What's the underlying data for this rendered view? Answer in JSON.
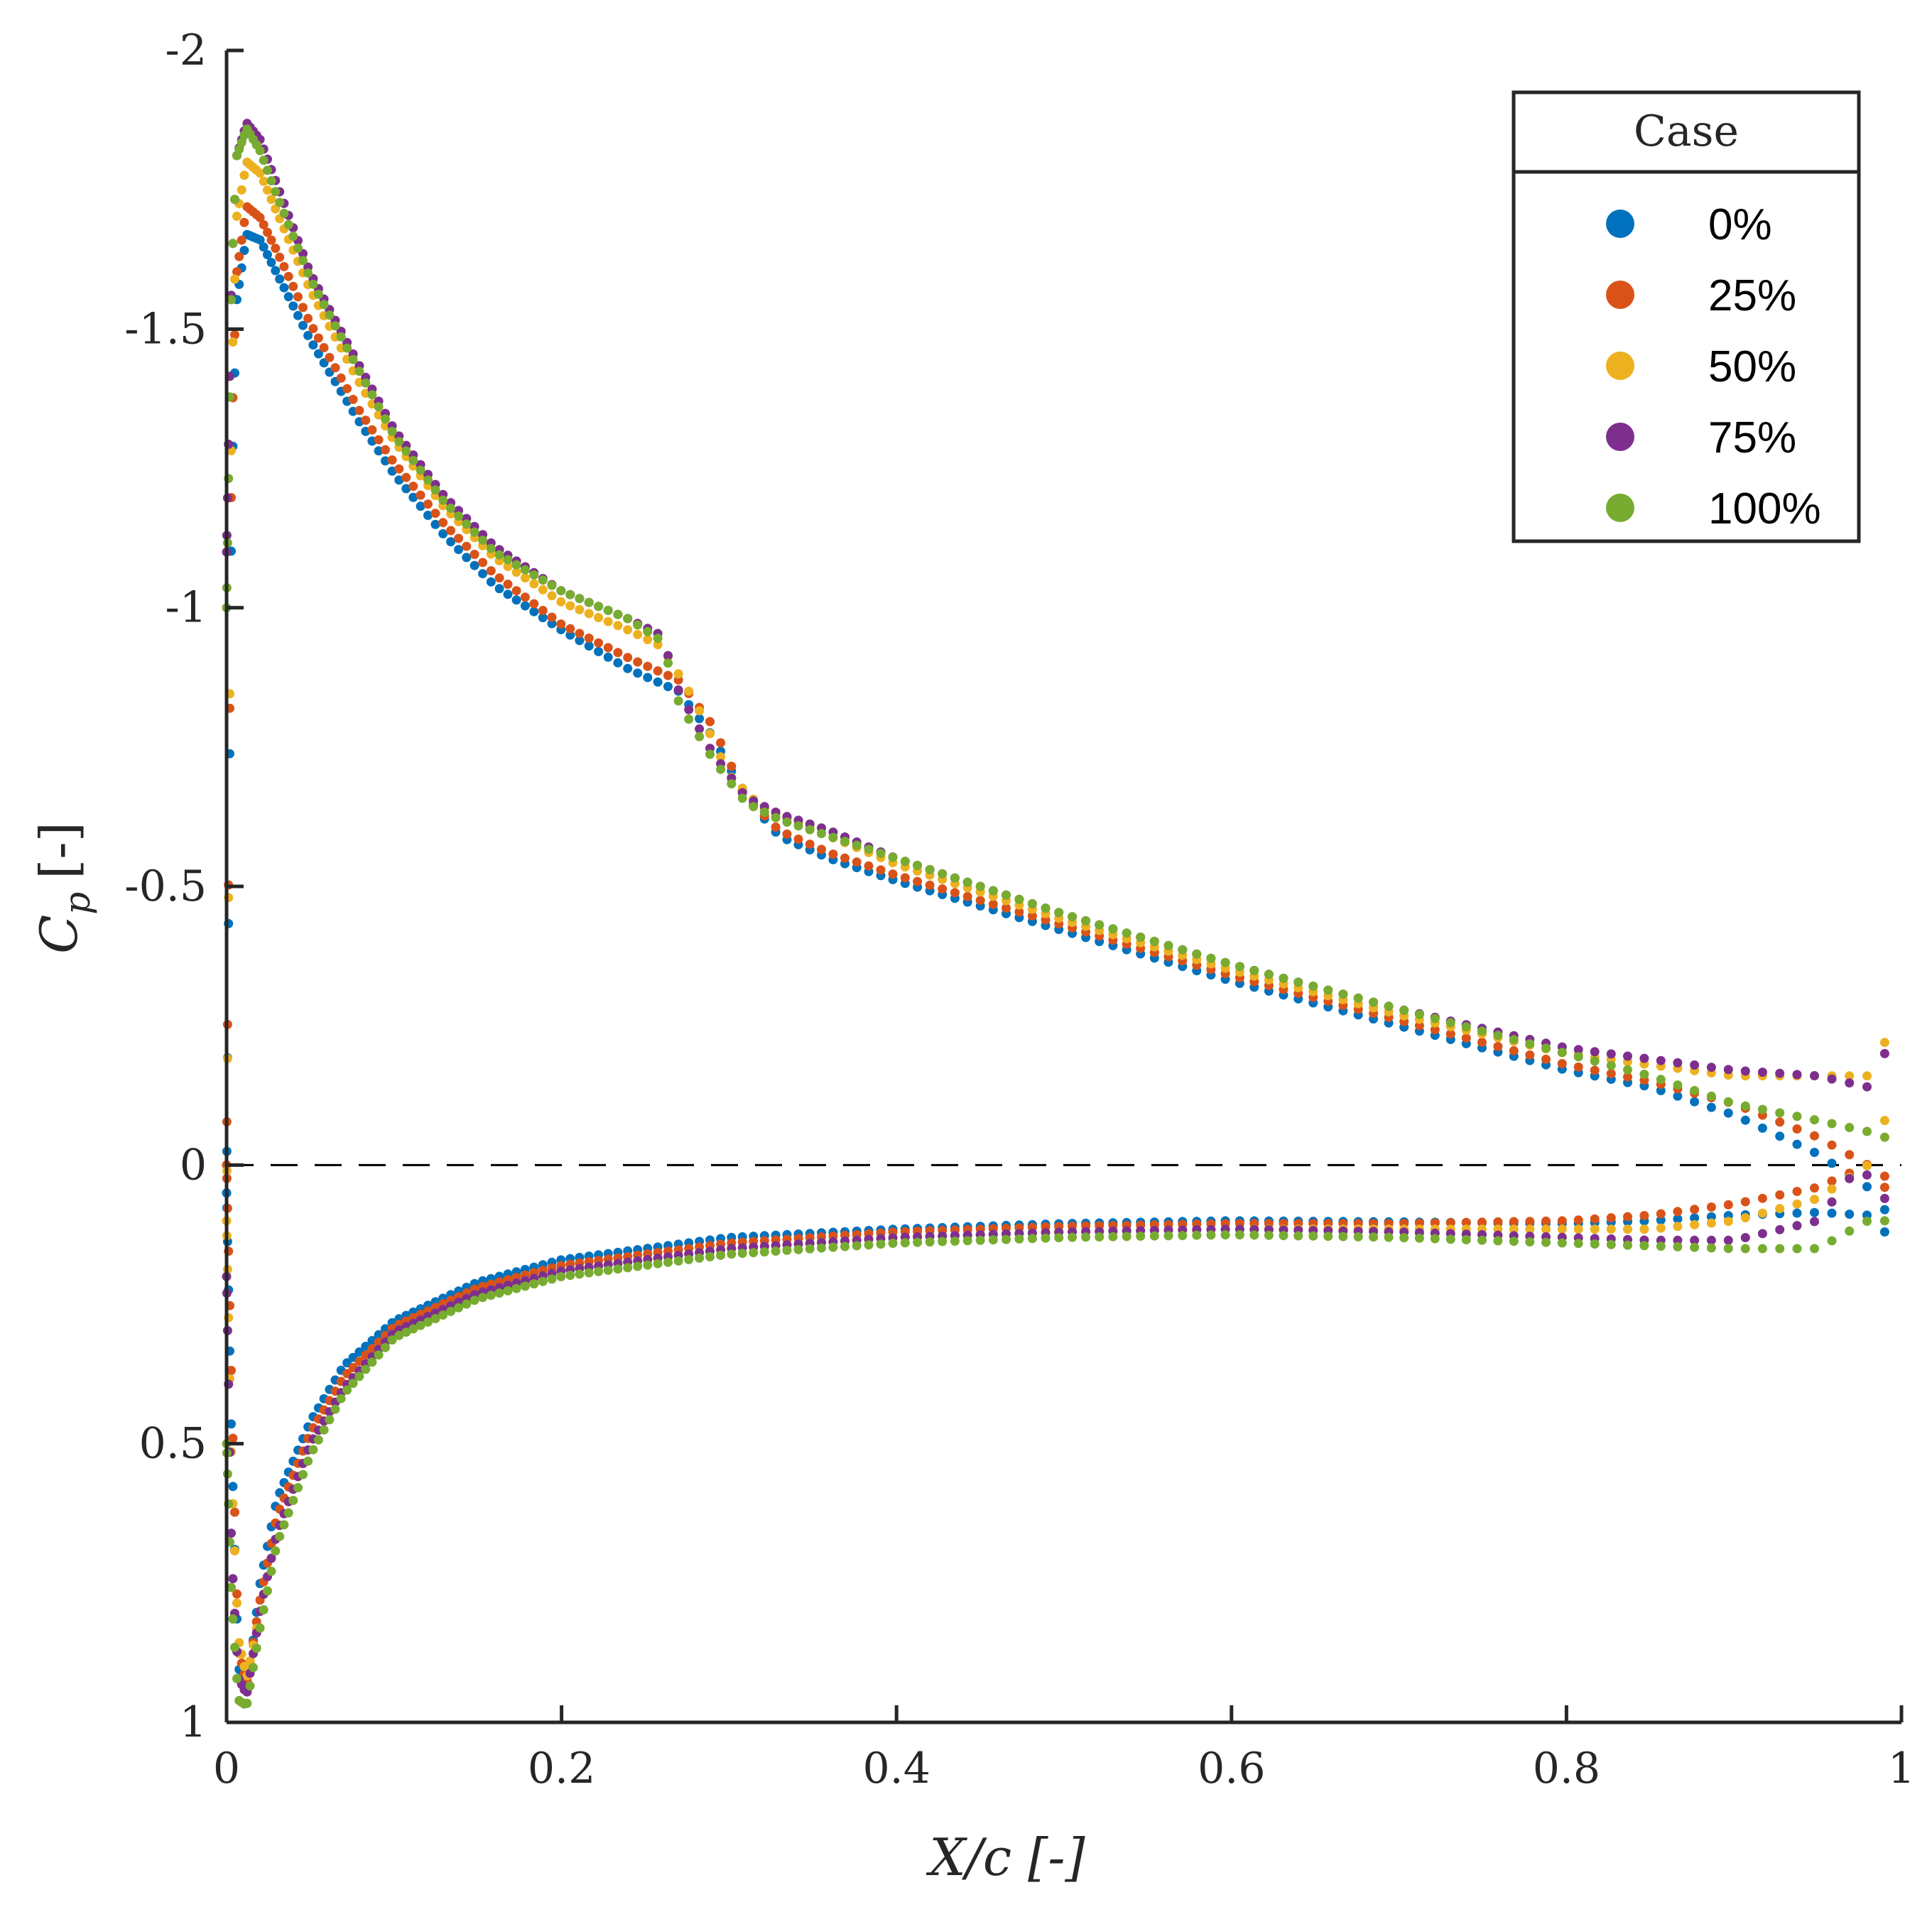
{
  "chart_data": {
    "type": "scatter",
    "title": "",
    "xlabel": "X/c [-]",
    "ylabel": "C_p [-]",
    "ylabel_main": "C",
    "ylabel_sub": "p",
    "ylabel_unit": "[-]",
    "xlim": [
      0,
      1
    ],
    "ylim": [
      1,
      -2
    ],
    "y_reversed": true,
    "xticks": [
      0,
      0.2,
      0.4,
      0.6,
      0.8,
      1
    ],
    "xtick_labels": [
      "0",
      "0.2",
      "0.4",
      "0.6",
      "0.8",
      "1"
    ],
    "yticks": [
      -2,
      -1.5,
      -1,
      -0.5,
      0,
      0.5,
      1
    ],
    "ytick_labels": [
      "-2",
      "-1.5",
      "-1",
      "-0.5",
      "0",
      "0.5",
      "1"
    ],
    "reference_line": {
      "y": 0,
      "style": "dashed"
    },
    "legend": {
      "title": "Case",
      "position": "top-right"
    },
    "series": [
      {
        "name": "0%",
        "color": "#0072BD",
        "upper": [
          [
            0,
            0.05
          ],
          [
            0.003,
            -1.2
          ],
          [
            0.006,
            -1.55
          ],
          [
            0.012,
            -1.67
          ],
          [
            0.02,
            -1.66
          ],
          [
            0.03,
            -1.6
          ],
          [
            0.05,
            -1.48
          ],
          [
            0.08,
            -1.33
          ],
          [
            0.1,
            -1.24
          ],
          [
            0.13,
            -1.13
          ],
          [
            0.16,
            -1.04
          ],
          [
            0.2,
            -0.96
          ],
          [
            0.24,
            -0.89
          ],
          [
            0.27,
            -0.85
          ],
          [
            0.29,
            -0.77
          ],
          [
            0.31,
            -0.66
          ],
          [
            0.33,
            -0.59
          ],
          [
            0.36,
            -0.55
          ],
          [
            0.4,
            -0.51
          ],
          [
            0.5,
            -0.42
          ],
          [
            0.6,
            -0.33
          ],
          [
            0.7,
            -0.25
          ],
          [
            0.8,
            -0.17
          ],
          [
            0.85,
            -0.14
          ],
          [
            0.9,
            -0.09
          ],
          [
            0.95,
            -0.02
          ],
          [
            0.98,
            0.04
          ],
          [
            0.99,
            0.08
          ]
        ],
        "lower": [
          [
            0,
            0.05
          ],
          [
            0.003,
            0.5
          ],
          [
            0.007,
            0.9
          ],
          [
            0.012,
            0.95
          ],
          [
            0.02,
            0.75
          ],
          [
            0.03,
            0.6
          ],
          [
            0.05,
            0.46
          ],
          [
            0.07,
            0.36
          ],
          [
            0.1,
            0.28
          ],
          [
            0.15,
            0.21
          ],
          [
            0.2,
            0.17
          ],
          [
            0.3,
            0.13
          ],
          [
            0.4,
            0.115
          ],
          [
            0.5,
            0.105
          ],
          [
            0.6,
            0.1
          ],
          [
            0.7,
            0.102
          ],
          [
            0.8,
            0.105
          ],
          [
            0.85,
            0.1
          ],
          [
            0.9,
            0.09
          ],
          [
            0.95,
            0.085
          ],
          [
            0.98,
            0.09
          ],
          [
            0.99,
            0.12
          ]
        ]
      },
      {
        "name": "25%",
        "color": "#D95319",
        "upper": [
          [
            0,
            0.0
          ],
          [
            0.003,
            -1.3
          ],
          [
            0.006,
            -1.6
          ],
          [
            0.012,
            -1.72
          ],
          [
            0.02,
            -1.7
          ],
          [
            0.03,
            -1.64
          ],
          [
            0.05,
            -1.51
          ],
          [
            0.08,
            -1.35
          ],
          [
            0.1,
            -1.26
          ],
          [
            0.13,
            -1.15
          ],
          [
            0.16,
            -1.06
          ],
          [
            0.2,
            -0.97
          ],
          [
            0.24,
            -0.91
          ],
          [
            0.27,
            -0.87
          ],
          [
            0.29,
            -0.79
          ],
          [
            0.31,
            -0.66
          ],
          [
            0.33,
            -0.6
          ],
          [
            0.36,
            -0.56
          ],
          [
            0.4,
            -0.52
          ],
          [
            0.5,
            -0.43
          ],
          [
            0.6,
            -0.34
          ],
          [
            0.7,
            -0.26
          ],
          [
            0.8,
            -0.18
          ],
          [
            0.85,
            -0.15
          ],
          [
            0.9,
            -0.11
          ],
          [
            0.95,
            -0.05
          ],
          [
            0.98,
            0.0
          ],
          [
            0.99,
            0.04
          ]
        ],
        "lower": [
          [
            0,
            0.0
          ],
          [
            0.003,
            0.4
          ],
          [
            0.007,
            0.87
          ],
          [
            0.012,
            0.93
          ],
          [
            0.02,
            0.78
          ],
          [
            0.03,
            0.63
          ],
          [
            0.05,
            0.48
          ],
          [
            0.07,
            0.38
          ],
          [
            0.1,
            0.29
          ],
          [
            0.15,
            0.22
          ],
          [
            0.2,
            0.18
          ],
          [
            0.3,
            0.14
          ],
          [
            0.4,
            0.12
          ],
          [
            0.5,
            0.11
          ],
          [
            0.6,
            0.105
          ],
          [
            0.7,
            0.105
          ],
          [
            0.8,
            0.1
          ],
          [
            0.85,
            0.09
          ],
          [
            0.9,
            0.07
          ],
          [
            0.95,
            0.04
          ],
          [
            0.98,
            0.0
          ],
          [
            0.99,
            0.02
          ]
        ]
      },
      {
        "name": "50%",
        "color": "#EDB120",
        "upper": [
          [
            0,
            0.1
          ],
          [
            0.003,
            -1.4
          ],
          [
            0.006,
            -1.7
          ],
          [
            0.012,
            -1.8
          ],
          [
            0.02,
            -1.78
          ],
          [
            0.03,
            -1.71
          ],
          [
            0.05,
            -1.57
          ],
          [
            0.08,
            -1.4
          ],
          [
            0.1,
            -1.3
          ],
          [
            0.13,
            -1.18
          ],
          [
            0.16,
            -1.09
          ],
          [
            0.2,
            -1.01
          ],
          [
            0.24,
            -0.96
          ],
          [
            0.26,
            -0.93
          ],
          [
            0.28,
            -0.83
          ],
          [
            0.3,
            -0.7
          ],
          [
            0.32,
            -0.64
          ],
          [
            0.36,
            -0.59
          ],
          [
            0.4,
            -0.54
          ],
          [
            0.5,
            -0.44
          ],
          [
            0.6,
            -0.35
          ],
          [
            0.7,
            -0.27
          ],
          [
            0.8,
            -0.2
          ],
          [
            0.85,
            -0.18
          ],
          [
            0.9,
            -0.16
          ],
          [
            0.95,
            -0.16
          ],
          [
            0.98,
            -0.16
          ],
          [
            0.99,
            -0.22
          ]
        ],
        "lower": [
          [
            0,
            0.1
          ],
          [
            0.003,
            0.55
          ],
          [
            0.007,
            0.85
          ],
          [
            0.012,
            0.92
          ],
          [
            0.02,
            0.8
          ],
          [
            0.03,
            0.66
          ],
          [
            0.05,
            0.5
          ],
          [
            0.07,
            0.4
          ],
          [
            0.1,
            0.3
          ],
          [
            0.15,
            0.23
          ],
          [
            0.2,
            0.19
          ],
          [
            0.3,
            0.15
          ],
          [
            0.4,
            0.13
          ],
          [
            0.5,
            0.12
          ],
          [
            0.6,
            0.115
          ],
          [
            0.7,
            0.115
          ],
          [
            0.8,
            0.115
          ],
          [
            0.85,
            0.115
          ],
          [
            0.9,
            0.1
          ],
          [
            0.95,
            0.06
          ],
          [
            0.98,
            0.0
          ],
          [
            0.99,
            -0.08
          ]
        ]
      },
      {
        "name": "75%",
        "color": "#7E2F8E",
        "upper": [
          [
            0,
            -1.1
          ],
          [
            0.003,
            -1.6
          ],
          [
            0.006,
            -1.81
          ],
          [
            0.012,
            -1.87
          ],
          [
            0.02,
            -1.84
          ],
          [
            0.03,
            -1.76
          ],
          [
            0.05,
            -1.6
          ],
          [
            0.08,
            -1.43
          ],
          [
            0.1,
            -1.32
          ],
          [
            0.13,
            -1.2
          ],
          [
            0.16,
            -1.11
          ],
          [
            0.2,
            -1.03
          ],
          [
            0.24,
            -0.98
          ],
          [
            0.26,
            -0.95
          ],
          [
            0.27,
            -0.85
          ],
          [
            0.29,
            -0.74
          ],
          [
            0.31,
            -0.66
          ],
          [
            0.33,
            -0.63
          ],
          [
            0.36,
            -0.6
          ],
          [
            0.4,
            -0.55
          ],
          [
            0.5,
            -0.45
          ],
          [
            0.6,
            -0.36
          ],
          [
            0.7,
            -0.28
          ],
          [
            0.8,
            -0.21
          ],
          [
            0.85,
            -0.19
          ],
          [
            0.9,
            -0.17
          ],
          [
            0.95,
            -0.16
          ],
          [
            0.98,
            -0.14
          ],
          [
            0.99,
            -0.2
          ]
        ],
        "lower": [
          [
            0,
            0.2
          ],
          [
            0.003,
            0.7
          ],
          [
            0.007,
            0.92
          ],
          [
            0.012,
            0.95
          ],
          [
            0.02,
            0.8
          ],
          [
            0.03,
            0.66
          ],
          [
            0.05,
            0.5
          ],
          [
            0.07,
            0.4
          ],
          [
            0.1,
            0.3
          ],
          [
            0.15,
            0.23
          ],
          [
            0.2,
            0.19
          ],
          [
            0.3,
            0.15
          ],
          [
            0.4,
            0.13
          ],
          [
            0.5,
            0.12
          ],
          [
            0.6,
            0.115
          ],
          [
            0.7,
            0.12
          ],
          [
            0.8,
            0.13
          ],
          [
            0.85,
            0.135
          ],
          [
            0.9,
            0.135
          ],
          [
            0.95,
            0.1
          ],
          [
            0.975,
            0.0
          ],
          [
            0.99,
            0.06
          ]
        ]
      },
      {
        "name": "100%",
        "color": "#77AC30",
        "upper": [
          [
            0,
            -1.0
          ],
          [
            0.003,
            -1.6
          ],
          [
            0.006,
            -1.81
          ],
          [
            0.012,
            -1.86
          ],
          [
            0.02,
            -1.82
          ],
          [
            0.03,
            -1.74
          ],
          [
            0.05,
            -1.59
          ],
          [
            0.08,
            -1.42
          ],
          [
            0.1,
            -1.31
          ],
          [
            0.13,
            -1.19
          ],
          [
            0.16,
            -1.1
          ],
          [
            0.2,
            -1.03
          ],
          [
            0.24,
            -0.98
          ],
          [
            0.26,
            -0.94
          ],
          [
            0.27,
            -0.83
          ],
          [
            0.29,
            -0.73
          ],
          [
            0.31,
            -0.65
          ],
          [
            0.33,
            -0.62
          ],
          [
            0.36,
            -0.59
          ],
          [
            0.4,
            -0.55
          ],
          [
            0.5,
            -0.45
          ],
          [
            0.6,
            -0.36
          ],
          [
            0.7,
            -0.28
          ],
          [
            0.8,
            -0.2
          ],
          [
            0.85,
            -0.16
          ],
          [
            0.9,
            -0.11
          ],
          [
            0.95,
            -0.08
          ],
          [
            0.98,
            -0.06
          ],
          [
            0.99,
            -0.05
          ]
        ],
        "lower": [
          [
            0,
            0.5
          ],
          [
            0.003,
            0.78
          ],
          [
            0.007,
            0.96
          ],
          [
            0.012,
            0.97
          ],
          [
            0.02,
            0.83
          ],
          [
            0.03,
            0.68
          ],
          [
            0.05,
            0.52
          ],
          [
            0.07,
            0.41
          ],
          [
            0.1,
            0.31
          ],
          [
            0.15,
            0.24
          ],
          [
            0.2,
            0.2
          ],
          [
            0.3,
            0.16
          ],
          [
            0.4,
            0.14
          ],
          [
            0.5,
            0.13
          ],
          [
            0.6,
            0.125
          ],
          [
            0.7,
            0.13
          ],
          [
            0.8,
            0.14
          ],
          [
            0.85,
            0.145
          ],
          [
            0.9,
            0.15
          ],
          [
            0.95,
            0.15
          ],
          [
            0.98,
            0.1
          ],
          [
            0.99,
            0.1
          ]
        ]
      }
    ]
  }
}
